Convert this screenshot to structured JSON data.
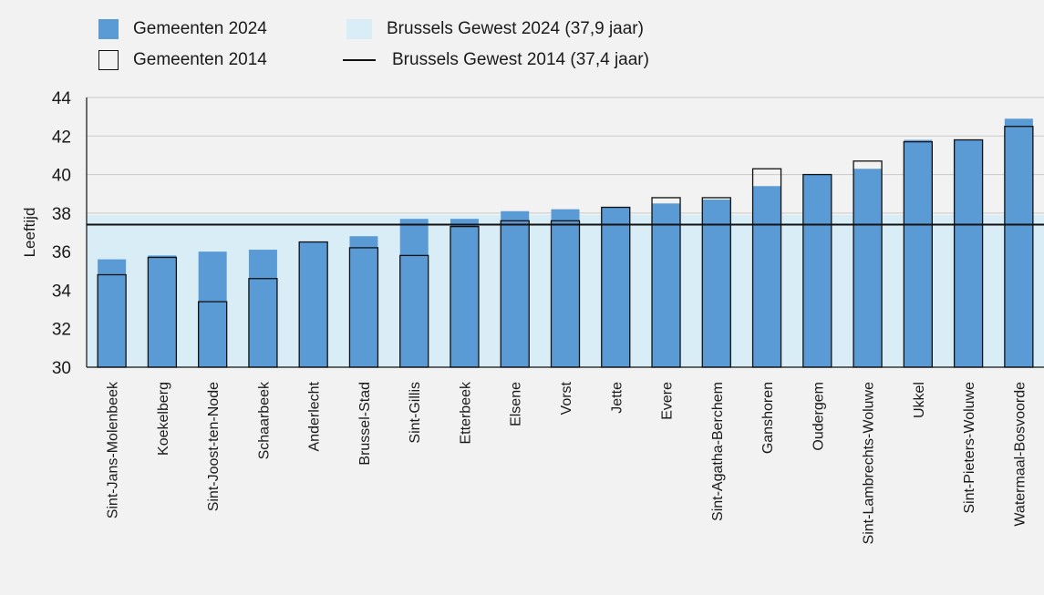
{
  "legend": {
    "items": [
      {
        "label": "Gemeenten 2024",
        "kind": "filled-bar",
        "color": "#5b9bd5"
      },
      {
        "label": "Gemeenten 2014",
        "kind": "outline-bar"
      },
      {
        "label": "Brussels Gewest 2024 (37,9 jaar)",
        "kind": "band",
        "color": "#d9edf7"
      },
      {
        "label": "Brussels Gewest 2014 (37,4 jaar)",
        "kind": "line",
        "color": "#111111"
      }
    ]
  },
  "chart_data": {
    "type": "bar",
    "ylabel": "Leeftijd",
    "ylim": [
      30,
      44
    ],
    "yticks": [
      30,
      32,
      34,
      36,
      38,
      40,
      42,
      44
    ],
    "grid": true,
    "legend_position": "top-left",
    "categories": [
      "Sint-Jans-Molenbeek",
      "Koekelberg",
      "Sint-Joost-ten-Node",
      "Schaarbeek",
      "Anderlecht",
      "Brussel-Stad",
      "Sint-Gillis",
      "Etterbeek",
      "Elsene",
      "Vorst",
      "Jette",
      "Evere",
      "Sint-Agatha-Berchem",
      "Ganshoren",
      "Oudergem",
      "Sint-Lambrechts-Woluwe",
      "Ukkel",
      "Sint-Pieters-Woluwe",
      "Watermaal-Bosvoorde"
    ],
    "series": [
      {
        "name": "Gemeenten 2024",
        "style": "filled",
        "color": "#5b9bd5",
        "values": [
          35.6,
          35.8,
          36.0,
          36.1,
          36.5,
          36.8,
          37.7,
          37.7,
          38.1,
          38.2,
          38.3,
          38.5,
          38.7,
          39.4,
          40.0,
          40.3,
          41.8,
          41.8,
          42.9
        ]
      },
      {
        "name": "Gemeenten 2014",
        "style": "outline",
        "values": [
          34.8,
          35.7,
          33.4,
          34.6,
          36.5,
          36.2,
          35.8,
          37.3,
          37.6,
          37.6,
          38.3,
          38.8,
          38.8,
          40.3,
          40.0,
          40.7,
          41.7,
          41.8,
          42.5
        ]
      }
    ],
    "reference_band": {
      "name": "Brussels Gewest 2024 (37,9 jaar)",
      "value": 37.9,
      "color": "#d9edf7"
    },
    "reference_line": {
      "name": "Brussels Gewest 2014 (37,4 jaar)",
      "value": 37.4,
      "color": "#111111"
    }
  }
}
